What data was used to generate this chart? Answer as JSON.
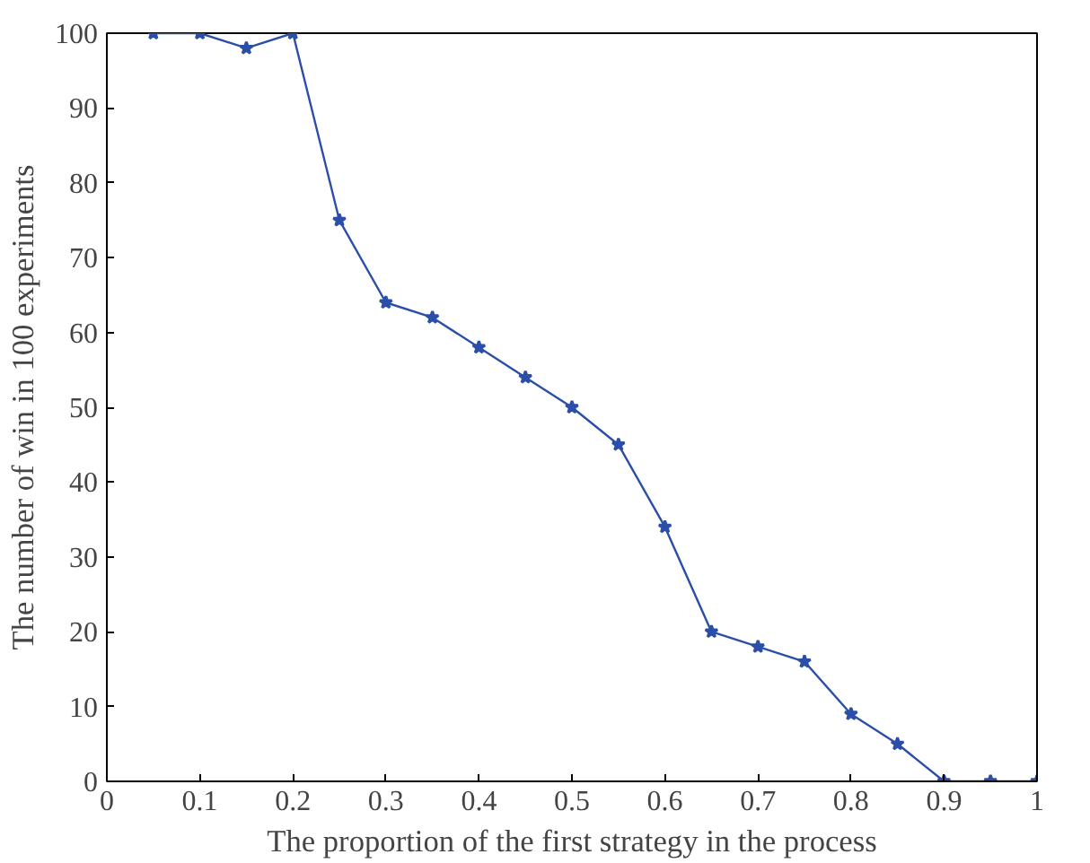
{
  "chart_data": {
    "type": "line",
    "xlabel": "The proportion of the first strategy in the process",
    "ylabel": "The number of win in 100 experiments",
    "x": [
      0.05,
      0.1,
      0.15,
      0.2,
      0.25,
      0.3,
      0.35,
      0.4,
      0.45,
      0.5,
      0.55,
      0.6,
      0.65,
      0.7,
      0.75,
      0.8,
      0.85,
      0.9,
      0.95,
      1
    ],
    "series": [
      {
        "color": "#2b4fa8",
        "values": [
          100,
          100,
          98,
          100,
          75,
          64,
          62,
          58,
          54,
          50,
          45,
          34,
          20,
          18,
          16,
          9,
          5,
          0,
          0,
          0
        ]
      }
    ],
    "xlim": [
      0,
      1
    ],
    "ylim": [
      0,
      100
    ],
    "xticks": [
      0,
      0.1,
      0.2,
      0.3,
      0.4,
      0.5,
      0.6,
      0.7,
      0.8,
      0.9,
      1
    ],
    "yticks": [
      0,
      10,
      20,
      30,
      40,
      50,
      60,
      70,
      80,
      90,
      100
    ],
    "grid": false,
    "marker": "star",
    "line_style": "solid"
  }
}
